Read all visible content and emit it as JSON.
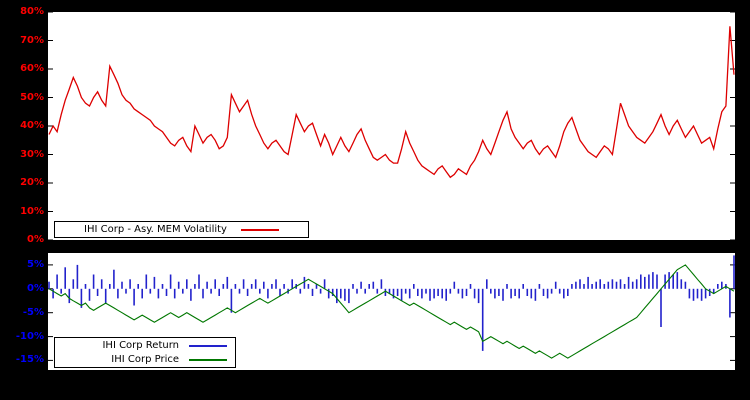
{
  "page": {
    "background": "#000000"
  },
  "chart_data": [
    {
      "type": "line",
      "panel": "top",
      "axis_label_color": "#ff0000",
      "ylim": [
        0,
        80
      ],
      "y_unit": "%",
      "grid": false,
      "legend_position": "bottom-left",
      "y_ticks": [
        {
          "value": 80,
          "label": "80%"
        },
        {
          "value": 70,
          "label": "70%"
        },
        {
          "value": 60,
          "label": "60%"
        },
        {
          "value": 50,
          "label": "50%"
        },
        {
          "value": 40,
          "label": "40%"
        },
        {
          "value": 30,
          "label": "30%"
        },
        {
          "value": 20,
          "label": "20%"
        },
        {
          "value": 10,
          "label": "10%"
        },
        {
          "value": 0,
          "label": "0%"
        }
      ],
      "series": [
        {
          "name": "IHI Corp - Asy. MEM Volatility",
          "type": "line",
          "color": "#dd0000",
          "values": [
            37,
            40,
            38,
            44,
            49,
            53,
            57,
            54,
            50,
            48,
            47,
            50,
            52,
            49,
            47,
            61,
            58,
            55,
            51,
            49,
            48,
            46,
            45,
            44,
            43,
            42,
            40,
            39,
            38,
            36,
            34,
            33,
            35,
            36,
            33,
            31,
            40,
            37,
            34,
            36,
            37,
            35,
            32,
            33,
            36,
            51,
            48,
            45,
            47,
            49,
            44,
            40,
            37,
            34,
            32,
            34,
            35,
            33,
            31,
            30,
            37,
            44,
            41,
            38,
            40,
            41,
            37,
            33,
            37,
            34,
            30,
            33,
            36,
            33,
            31,
            34,
            37,
            39,
            35,
            32,
            29,
            28,
            29,
            30,
            28,
            27,
            27,
            32,
            38,
            34,
            31,
            28,
            26,
            25,
            24,
            23,
            25,
            26,
            24,
            22,
            23,
            25,
            24,
            23,
            26,
            28,
            31,
            35,
            32,
            30,
            34,
            38,
            42,
            45,
            39,
            36,
            34,
            32,
            34,
            35,
            32,
            30,
            32,
            33,
            31,
            29,
            33,
            38,
            41,
            43,
            39,
            35,
            33,
            31,
            30,
            29,
            31,
            33,
            32,
            30,
            39,
            48,
            44,
            40,
            38,
            36,
            35,
            34,
            36,
            38,
            41,
            44,
            40,
            37,
            40,
            42,
            39,
            36,
            38,
            40,
            37,
            34,
            35,
            36,
            32,
            39,
            45,
            47,
            75,
            58
          ]
        }
      ]
    },
    {
      "type": "bar+line",
      "panel": "bottom",
      "axis_label_color": "#0000ff",
      "ylim": [
        -17,
        7.5
      ],
      "y_unit": "%",
      "grid": false,
      "legend_position": "bottom-left",
      "y_ticks": [
        {
          "value": 5,
          "label": "5%"
        },
        {
          "value": 0,
          "label": "0%"
        },
        {
          "value": -5,
          "label": "-5%"
        },
        {
          "value": -10,
          "label": "-10%"
        },
        {
          "value": -15,
          "label": "-15%"
        }
      ],
      "series": [
        {
          "name": "IHI Corp Return",
          "type": "bar",
          "color": "#2222cc",
          "values": [
            1.5,
            -2,
            3,
            -1,
            4.5,
            -3,
            2,
            5,
            -4,
            1,
            -2.5,
            3,
            -1.5,
            2,
            -3,
            1,
            4,
            -2,
            1.5,
            -1,
            2,
            -3.5,
            1,
            -2,
            3,
            -1,
            2.5,
            -2,
            1,
            -1.5,
            3,
            -2,
            1.5,
            -1,
            2,
            -2.5,
            1,
            3,
            -2,
            1.5,
            -1,
            2,
            -1.5,
            1,
            2.5,
            -5,
            1,
            -1,
            2,
            -1.5,
            1,
            2,
            -1,
            1.5,
            -2,
            1,
            2,
            -1.5,
            1,
            -1,
            2,
            1,
            -1,
            2.5,
            1,
            -1.5,
            1,
            -1,
            2,
            -2,
            -1.5,
            -3,
            -2,
            -2.5,
            -3,
            1,
            -1,
            1.5,
            -1,
            1,
            1.5,
            -1,
            2,
            -1.5,
            -1,
            -2,
            -1.5,
            -2.5,
            -1,
            -2,
            1,
            -1.5,
            -2,
            -1,
            -2.5,
            -2,
            -1.5,
            -2,
            -2.5,
            -1,
            1.5,
            -1,
            -2,
            -1.5,
            1,
            -2,
            -3,
            -13,
            2,
            -1,
            -2,
            -1.5,
            -2.5,
            1,
            -2,
            -1.5,
            -2,
            1,
            -1.5,
            -2,
            -2.5,
            1,
            -1.5,
            -2,
            -1,
            1.5,
            -1,
            -2,
            -1.5,
            1,
            1.5,
            2,
            1,
            2.5,
            1,
            1.5,
            2,
            1,
            1.5,
            2,
            1.5,
            2,
            1,
            2.5,
            1.5,
            2,
            3,
            2.5,
            3,
            3.5,
            3,
            -8,
            3,
            3.5,
            3,
            3.5,
            2,
            1.5,
            -2,
            -2.5,
            -2,
            -2.5,
            -2,
            -1.5,
            -1,
            1,
            1.5,
            1,
            -6,
            7
          ]
        },
        {
          "name": "IHI Corp Price",
          "type": "line",
          "color": "#007700",
          "values": [
            0,
            -0.5,
            -1,
            -1.5,
            -1,
            -2,
            -2.5,
            -3,
            -3.5,
            -3,
            -4,
            -4.5,
            -4,
            -3.5,
            -3,
            -3.5,
            -4,
            -4.5,
            -5,
            -5.5,
            -6,
            -6.5,
            -6,
            -5.5,
            -6,
            -6.5,
            -7,
            -6.5,
            -6,
            -5.5,
            -5,
            -5.5,
            -6,
            -5.5,
            -5,
            -5.5,
            -6,
            -6.5,
            -7,
            -6.5,
            -6,
            -5.5,
            -5,
            -4.5,
            -4,
            -4.5,
            -5,
            -4.5,
            -4,
            -3.5,
            -3,
            -2.5,
            -2,
            -2.5,
            -3,
            -2.5,
            -2,
            -1.5,
            -1,
            -0.5,
            0,
            0.5,
            1,
            1.5,
            2,
            1.5,
            1,
            0.5,
            0,
            -0.5,
            -1,
            -2,
            -3,
            -4,
            -5,
            -4.5,
            -4,
            -3.5,
            -3,
            -2.5,
            -2,
            -1.5,
            -1,
            -0.5,
            -1,
            -1.5,
            -2,
            -2.5,
            -3,
            -3.5,
            -3,
            -3.5,
            -4,
            -4.5,
            -5,
            -5.5,
            -6,
            -6.5,
            -7,
            -7.5,
            -7,
            -7.5,
            -8,
            -8.5,
            -8,
            -8.5,
            -9,
            -11,
            -10.5,
            -10,
            -10.5,
            -11,
            -11.5,
            -11,
            -11.5,
            -12,
            -12.5,
            -12,
            -12.5,
            -13,
            -13.5,
            -13,
            -13.5,
            -14,
            -14.5,
            -14,
            -13.5,
            -14,
            -14.5,
            -14,
            -13.5,
            -13,
            -12.5,
            -12,
            -11.5,
            -11,
            -10.5,
            -10,
            -9.5,
            -9,
            -8.5,
            -8,
            -7.5,
            -7,
            -6.5,
            -6,
            -5,
            -4,
            -3,
            -2,
            -1,
            0,
            1,
            2,
            3,
            4,
            4.5,
            5,
            4,
            3,
            2,
            1,
            0,
            -0.5,
            -1,
            -0.5,
            0,
            0.5,
            0,
            -0.5
          ]
        }
      ]
    }
  ]
}
